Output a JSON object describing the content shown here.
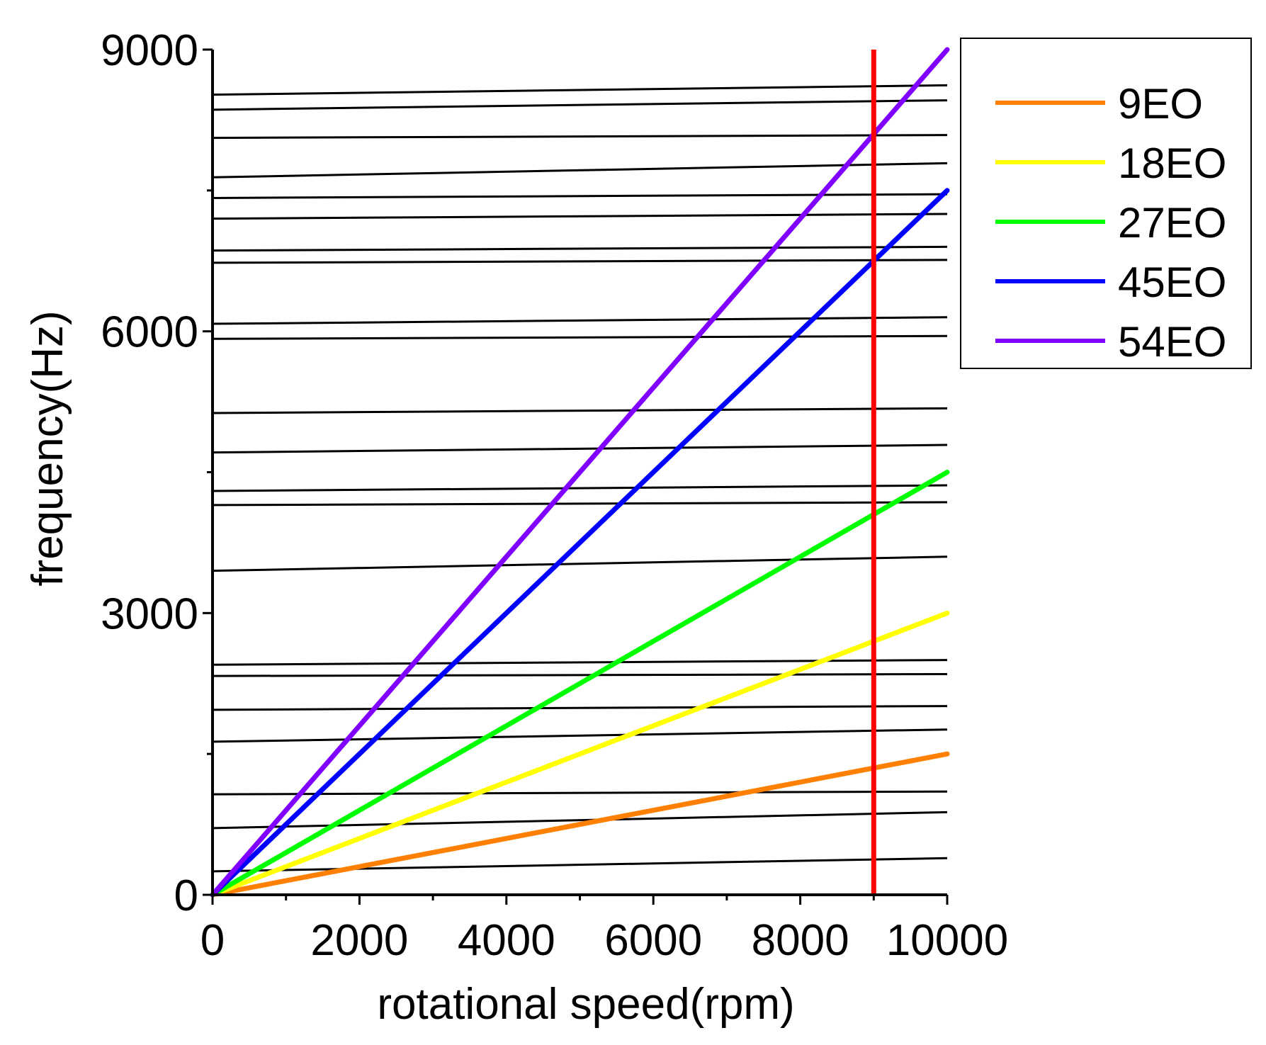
{
  "chart_data": {
    "type": "line",
    "title": "",
    "xlabel": "rotational speed(rpm)",
    "ylabel": "frequency(Hz)",
    "xlim": [
      0,
      10000
    ],
    "ylim": [
      0,
      9000
    ],
    "xticks": [
      0,
      2000,
      4000,
      6000,
      8000,
      10000
    ],
    "yticks": [
      0,
      3000,
      6000,
      9000
    ],
    "x_minor_step": 1000,
    "y_minor_step": 1500,
    "grid": false,
    "legend_position": "top-right, outside plot",
    "series": [
      {
        "name": "9EO",
        "engine_order": 9,
        "color": "#ff8000",
        "x": [
          0,
          10000
        ],
        "y": [
          0,
          1500
        ]
      },
      {
        "name": "18EO",
        "engine_order": 18,
        "color": "#ffff00",
        "x": [
          0,
          10000
        ],
        "y": [
          0,
          3000
        ]
      },
      {
        "name": "27EO",
        "engine_order": 27,
        "color": "#00ff00",
        "x": [
          0,
          10000
        ],
        "y": [
          0,
          4500
        ]
      },
      {
        "name": "45EO",
        "engine_order": 45,
        "color": "#0000ff",
        "x": [
          0,
          10000
        ],
        "y": [
          0,
          7500
        ]
      },
      {
        "name": "54EO",
        "engine_order": 54,
        "color": "#8000ff",
        "x": [
          0,
          10000
        ],
        "y": [
          0,
          9000
        ]
      }
    ],
    "natural_frequency_lines": {
      "color": "#000000",
      "x": [
        0,
        10000
      ],
      "values": [
        [
          250,
          390
        ],
        [
          710,
          880
        ],
        [
          1070,
          1100
        ],
        [
          1630,
          1760
        ],
        [
          1970,
          2010
        ],
        [
          2330,
          2350
        ],
        [
          2450,
          2500
        ],
        [
          3450,
          3600
        ],
        [
          4150,
          4180
        ],
        [
          4300,
          4360
        ],
        [
          4710,
          4790
        ],
        [
          5130,
          5180
        ],
        [
          5920,
          5950
        ],
        [
          6080,
          6150
        ],
        [
          6730,
          6760
        ],
        [
          6860,
          6900
        ],
        [
          7200,
          7250
        ],
        [
          7420,
          7460
        ],
        [
          7640,
          7790
        ],
        [
          8060,
          8090
        ],
        [
          8360,
          8460
        ],
        [
          8520,
          8620
        ]
      ]
    },
    "operating_speed_line": {
      "x": 9000,
      "color": "#ff0000"
    }
  }
}
